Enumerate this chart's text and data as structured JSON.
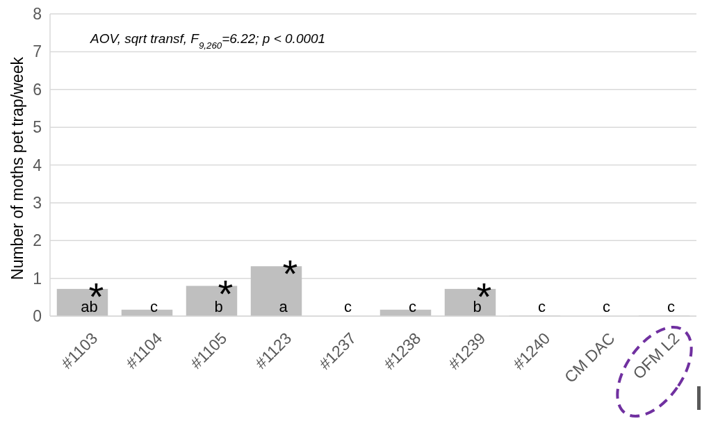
{
  "chart_data": {
    "type": "bar",
    "ylabel": "Number of moths pet trap/week",
    "categories": [
      "#1103",
      "#1104",
      "#1105",
      "#1123",
      "#1237",
      "#1238",
      "#1239",
      "#1240",
      "CM DAC",
      "OFM L2"
    ],
    "values": [
      0.72,
      0.17,
      0.8,
      1.32,
      0,
      0.17,
      0.72,
      0.02,
      0,
      0.02
    ],
    "color": "#bfbfbf",
    "value_labels": [
      "ab",
      "c",
      "b",
      "a",
      "c",
      "c",
      "b",
      "c",
      "c",
      "c"
    ],
    "ylim": [
      0,
      8
    ],
    "yticks": [
      0,
      1,
      2,
      3,
      4,
      5,
      6,
      7,
      8
    ],
    "grid": "y",
    "annotations": [
      "AOV, sqrt transf, F$_{9,260}$=6.22; p < 0.0001",
      {
        "text": "*",
        "x": "#1103",
        "y": 0.72
      },
      {
        "text": "*",
        "x": "#1105",
        "y": 0.8
      },
      {
        "text": "*",
        "x": "#1123",
        "y": 1.32
      },
      {
        "text": "*",
        "x": "#1239",
        "y": 0.72
      }
    ]
  }
}
